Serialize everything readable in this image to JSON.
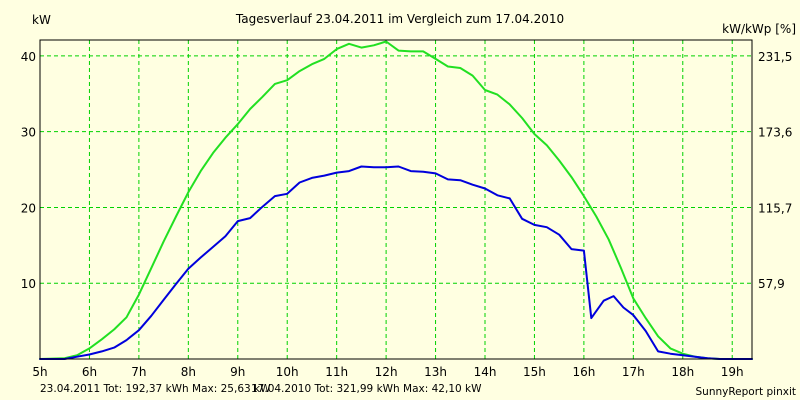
{
  "chart_data": {
    "type": "line",
    "title": "Tagesverlauf 23.04.2011 im Vergleich zum 17.04.2010",
    "ylabel_left": "kW",
    "ylabel_right": "kW/kWp [%]",
    "x_ticks": [
      "5h",
      "6h",
      "7h",
      "8h",
      "9h",
      "10h",
      "11h",
      "12h",
      "13h",
      "14h",
      "15h",
      "16h",
      "17h",
      "18h",
      "19h"
    ],
    "xlim": [
      5,
      19.4
    ],
    "ylim": [
      0,
      42.1
    ],
    "y_ticks": [
      10,
      20,
      30,
      40
    ],
    "y_tick_labels": [
      "10",
      "20",
      "30",
      "40"
    ],
    "y2_ticks": [
      57.9,
      115.7,
      173.6,
      231.5
    ],
    "y2_tick_labels": [
      "57,9",
      "115,7",
      "173,6",
      "231,5"
    ],
    "grid": true,
    "colors": {
      "background": "#ffffe1",
      "plot_background": "#ffffe1",
      "grid": "#00d200",
      "series_2011": "#0000dc",
      "series_2010": "#22e022",
      "footer_2011": "#0000ff",
      "footer_2010": "#008000"
    },
    "series": [
      {
        "name": "23.04.2011",
        "color": "#0000dc",
        "x": [
          5.0,
          5.5,
          5.75,
          6.0,
          6.25,
          6.5,
          6.75,
          7.0,
          7.25,
          7.5,
          7.75,
          8.0,
          8.25,
          8.5,
          8.75,
          9.0,
          9.25,
          9.5,
          9.75,
          10.0,
          10.25,
          10.5,
          10.75,
          11.0,
          11.25,
          11.5,
          11.75,
          12.0,
          12.25,
          12.5,
          12.75,
          13.0,
          13.25,
          13.5,
          13.75,
          14.0,
          14.25,
          14.5,
          14.75,
          15.0,
          15.25,
          15.5,
          15.75,
          16.0,
          16.15,
          16.4,
          16.6,
          16.8,
          17.0,
          17.25,
          17.5,
          17.75,
          18.0,
          18.25,
          18.5,
          18.75,
          19.0,
          19.25,
          19.4
        ],
        "values": [
          0,
          0,
          0.3,
          0.6,
          1.0,
          1.5,
          2.5,
          3.8,
          5.7,
          7.8,
          9.9,
          11.9,
          13.4,
          14.8,
          16.2,
          18.2,
          18.6,
          20.1,
          21.5,
          21.8,
          23.3,
          23.9,
          24.2,
          24.6,
          24.8,
          25.4,
          25.3,
          25.3,
          25.4,
          24.8,
          24.7,
          24.5,
          23.7,
          23.6,
          23.0,
          22.5,
          21.6,
          21.2,
          18.5,
          17.7,
          17.4,
          16.4,
          14.5,
          14.3,
          5.4,
          7.7,
          8.3,
          6.8,
          5.8,
          3.7,
          1.0,
          0.7,
          0.5,
          0.3,
          0.1,
          0,
          0,
          0,
          0
        ]
      },
      {
        "name": "17.04.2010",
        "color": "#22e022",
        "x": [
          5.0,
          5.5,
          5.75,
          6.0,
          6.25,
          6.5,
          6.75,
          7.0,
          7.25,
          7.5,
          7.75,
          8.0,
          8.25,
          8.5,
          8.75,
          9.0,
          9.25,
          9.5,
          9.75,
          10.0,
          10.25,
          10.5,
          10.75,
          11.0,
          11.25,
          11.5,
          11.75,
          12.0,
          12.25,
          12.5,
          12.75,
          13.0,
          13.25,
          13.5,
          13.75,
          14.0,
          14.25,
          14.5,
          14.75,
          15.0,
          15.25,
          15.5,
          15.75,
          16.0,
          16.25,
          16.5,
          16.75,
          17.0,
          17.25,
          17.5,
          17.75,
          18.0,
          18.25,
          18.5,
          18.75,
          19.0,
          19.25,
          19.4
        ],
        "values": [
          0,
          0.1,
          0.5,
          1.4,
          2.6,
          3.9,
          5.5,
          8.5,
          12.0,
          15.5,
          18.8,
          22.0,
          24.8,
          27.2,
          29.2,
          31.0,
          33.0,
          34.6,
          36.3,
          36.8,
          38.0,
          38.9,
          39.6,
          40.9,
          41.6,
          41.1,
          41.4,
          41.9,
          40.7,
          40.6,
          40.6,
          39.6,
          38.6,
          38.4,
          37.4,
          35.5,
          34.9,
          33.6,
          31.8,
          29.7,
          28.2,
          26.2,
          24.0,
          21.5,
          18.8,
          15.8,
          12.0,
          8.0,
          5.4,
          3.0,
          1.4,
          0.7,
          0.3,
          0.1,
          0,
          0,
          0,
          0
        ]
      }
    ],
    "footer": {
      "series_2011": "23.04.2011 Tot: 192,37 kWh Max: 25,63 kW",
      "series_2010": "17.04.2010 Tot: 321,99 kWh Max: 42,10 kW",
      "credit": "SunnyReport pinxit"
    }
  }
}
